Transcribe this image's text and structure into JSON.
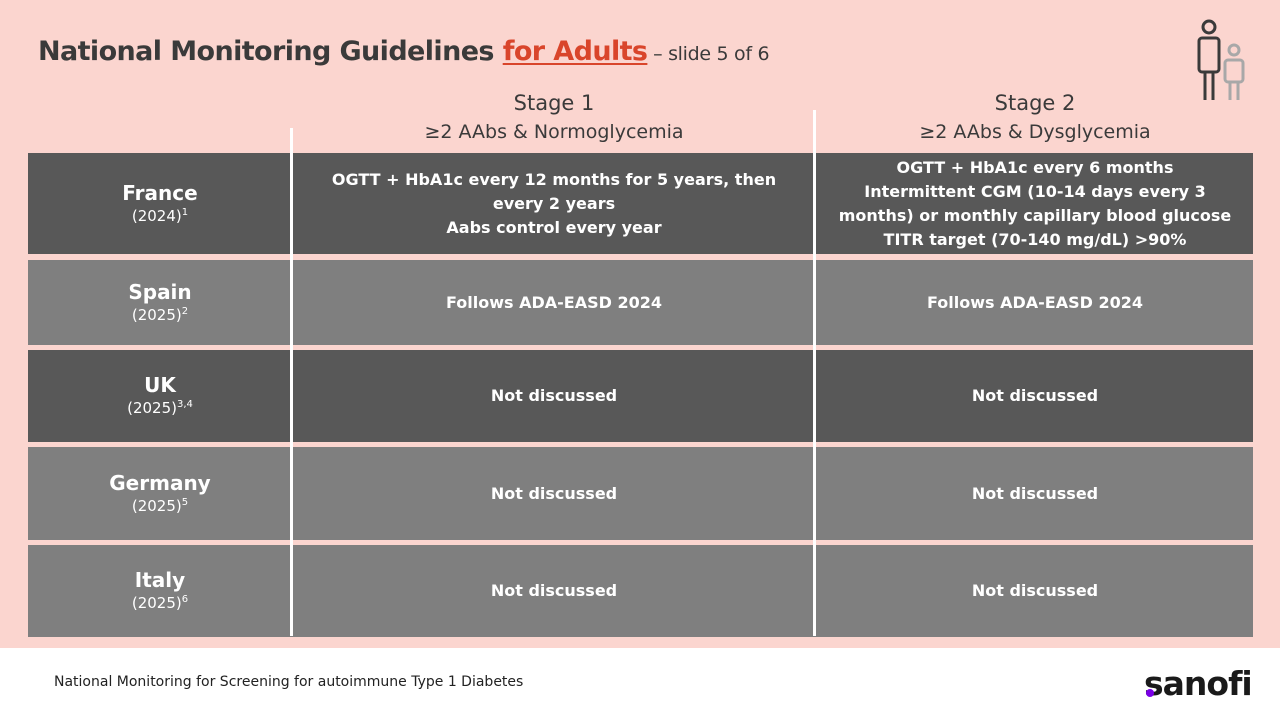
{
  "title": {
    "main": "National Monitoring Guidelines ",
    "accent": "for Adults",
    "sub": " – slide 5 of 6"
  },
  "icon": "adult-and-child-icon",
  "stages": [
    {
      "name": "Stage 1",
      "desc": "≥2 AAbs & Normoglycemia"
    },
    {
      "name": "Stage 2",
      "desc": "≥2 AAbs & Dysglycemia"
    }
  ],
  "rows": [
    {
      "country": "France",
      "year": "(2024)",
      "ref": "1",
      "stage1": [
        "OGTT + HbA1c every 12 months for 5 years, then every 2 years",
        "Aabs control every year"
      ],
      "stage2": [
        "OGTT + HbA1c every 6 months",
        "Intermittent CGM (10-14 days every 3 months) or monthly capillary blood glucose",
        "TITR target (70-140 mg/dL) >90%"
      ]
    },
    {
      "country": "Spain",
      "year": "(2025)",
      "ref": "2",
      "stage1": [
        "Follows ADA-EASD 2024"
      ],
      "stage2": [
        "Follows ADA-EASD 2024"
      ]
    },
    {
      "country": "UK",
      "year": "(2025)",
      "ref": "3,4",
      "stage1": [
        "Not discussed"
      ],
      "stage2": [
        "Not discussed"
      ]
    },
    {
      "country": "Germany",
      "year": "(2025)",
      "ref": "5",
      "stage1": [
        "Not discussed"
      ],
      "stage2": [
        "Not discussed"
      ]
    },
    {
      "country": "Italy",
      "year": "(2025)",
      "ref": "6",
      "stage1": [
        "Not discussed"
      ],
      "stage2": [
        "Not discussed"
      ]
    }
  ],
  "footer": {
    "text": "National Monitoring for Screening for autoimmune Type 1 Diabetes",
    "logo": "sanofi"
  },
  "colors": {
    "background": "#fbd5cf",
    "dark_row": "#585858",
    "light_row": "#7f7f7f",
    "accent": "#d9452b",
    "logo_dot": "#7a00e6"
  }
}
